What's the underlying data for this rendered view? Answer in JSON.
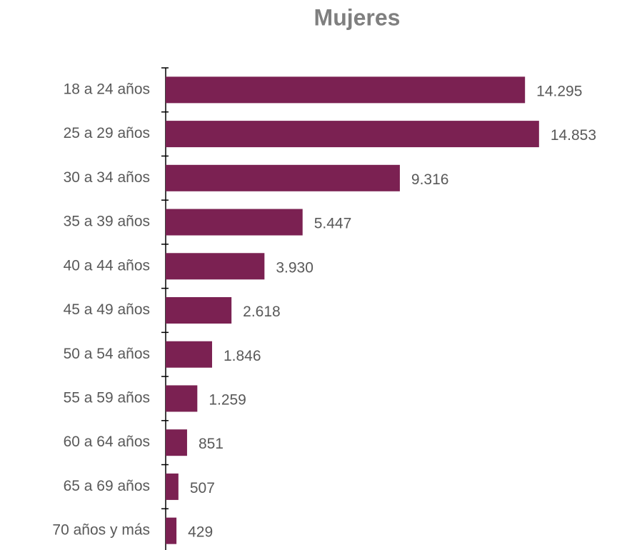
{
  "chart_data": {
    "type": "bar",
    "orientation": "horizontal",
    "title": "Mujeres",
    "categories": [
      "18 a 24 años",
      "25 a 29 años",
      "30 a 34 años",
      "35 a 39 años",
      "40 a 44 años",
      "45 a 49 años",
      "50 a 54 años",
      "55 a 59 años",
      "60 a 64 años",
      "65 a 69 años",
      "70 años y más"
    ],
    "values": [
      14295,
      14853,
      9316,
      5447,
      3930,
      2618,
      1846,
      1259,
      851,
      507,
      429
    ],
    "value_labels": [
      "14.295",
      "14.853",
      "9.316",
      "5.447",
      "3.930",
      "2.618",
      "1.846",
      "1.259",
      "851",
      "507",
      "429"
    ],
    "color": "#7b2152",
    "xlim": [
      0,
      17500
    ]
  }
}
